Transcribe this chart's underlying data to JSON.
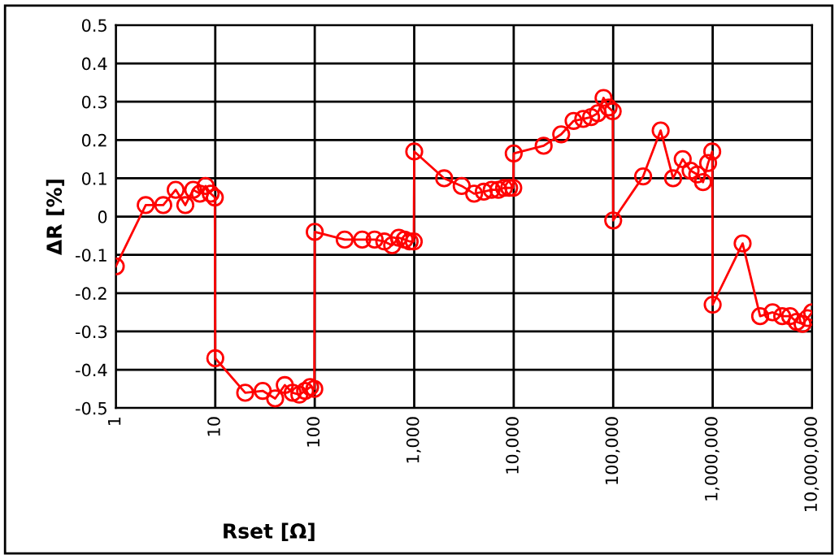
{
  "chart_data": {
    "type": "line",
    "xlabel": "Rset [Ω]",
    "ylabel": "ΔR [%]",
    "log": "x",
    "grid": true,
    "marker": "circle",
    "line_style": "solid",
    "legend": false,
    "series": [
      {
        "color": "#ff0000",
        "x": [
          1,
          2,
          3,
          4,
          5,
          6,
          7,
          8,
          9,
          9.9,
          10,
          20,
          30,
          40,
          50,
          60,
          70,
          80,
          90,
          99,
          100,
          200,
          300,
          400,
          500,
          600,
          700,
          800,
          900,
          990,
          1000,
          2000,
          3000,
          4000,
          5000,
          6000,
          7000,
          8000,
          9000,
          9900,
          10000,
          20000,
          30000,
          40000,
          50000,
          60000,
          70000,
          80000,
          90000,
          99000,
          100000,
          200000,
          300000,
          400000,
          500000,
          600000,
          700000,
          800000,
          900000,
          990000,
          1000000,
          2000000,
          3000000,
          4000000,
          5000000,
          6000000,
          7000000,
          8000000,
          9000000,
          10000000
        ],
        "values": [
          -0.13,
          0.03,
          0.03,
          0.07,
          0.03,
          0.07,
          0.06,
          0.08,
          0.06,
          0.05,
          -0.37,
          -0.46,
          -0.455,
          -0.475,
          -0.44,
          -0.46,
          -0.465,
          -0.455,
          -0.445,
          -0.45,
          -0.04,
          -0.06,
          -0.06,
          -0.06,
          -0.065,
          -0.075,
          -0.055,
          -0.06,
          -0.065,
          -0.065,
          0.17,
          0.1,
          0.08,
          0.06,
          0.065,
          0.07,
          0.07,
          0.075,
          0.075,
          0.075,
          0.165,
          0.185,
          0.215,
          0.25,
          0.255,
          0.26,
          0.27,
          0.31,
          0.285,
          0.275,
          -0.01,
          0.105,
          0.225,
          0.1,
          0.15,
          0.12,
          0.11,
          0.09,
          0.14,
          0.17,
          -0.23,
          -0.07,
          -0.26,
          -0.25,
          -0.26,
          -0.26,
          -0.275,
          -0.28,
          -0.265,
          -0.25
        ]
      }
    ],
    "xlim": [
      1,
      10000000
    ],
    "xticks": [
      1,
      10,
      100,
      {
        "value": 1000,
        "label": "1,000"
      },
      {
        "value": 10000,
        "label": "10,000"
      },
      {
        "value": 100000,
        "label": "100,000"
      },
      {
        "value": 1000000,
        "label": "1,000,000"
      },
      {
        "value": 10000000,
        "label": "10,000,000"
      }
    ],
    "ylim": [
      -0.5,
      0.5
    ],
    "yticks": [
      -0.5,
      -0.4,
      -0.3,
      -0.2,
      -0.1,
      0,
      0.1,
      0.2,
      0.3,
      0.4,
      0.5
    ]
  }
}
